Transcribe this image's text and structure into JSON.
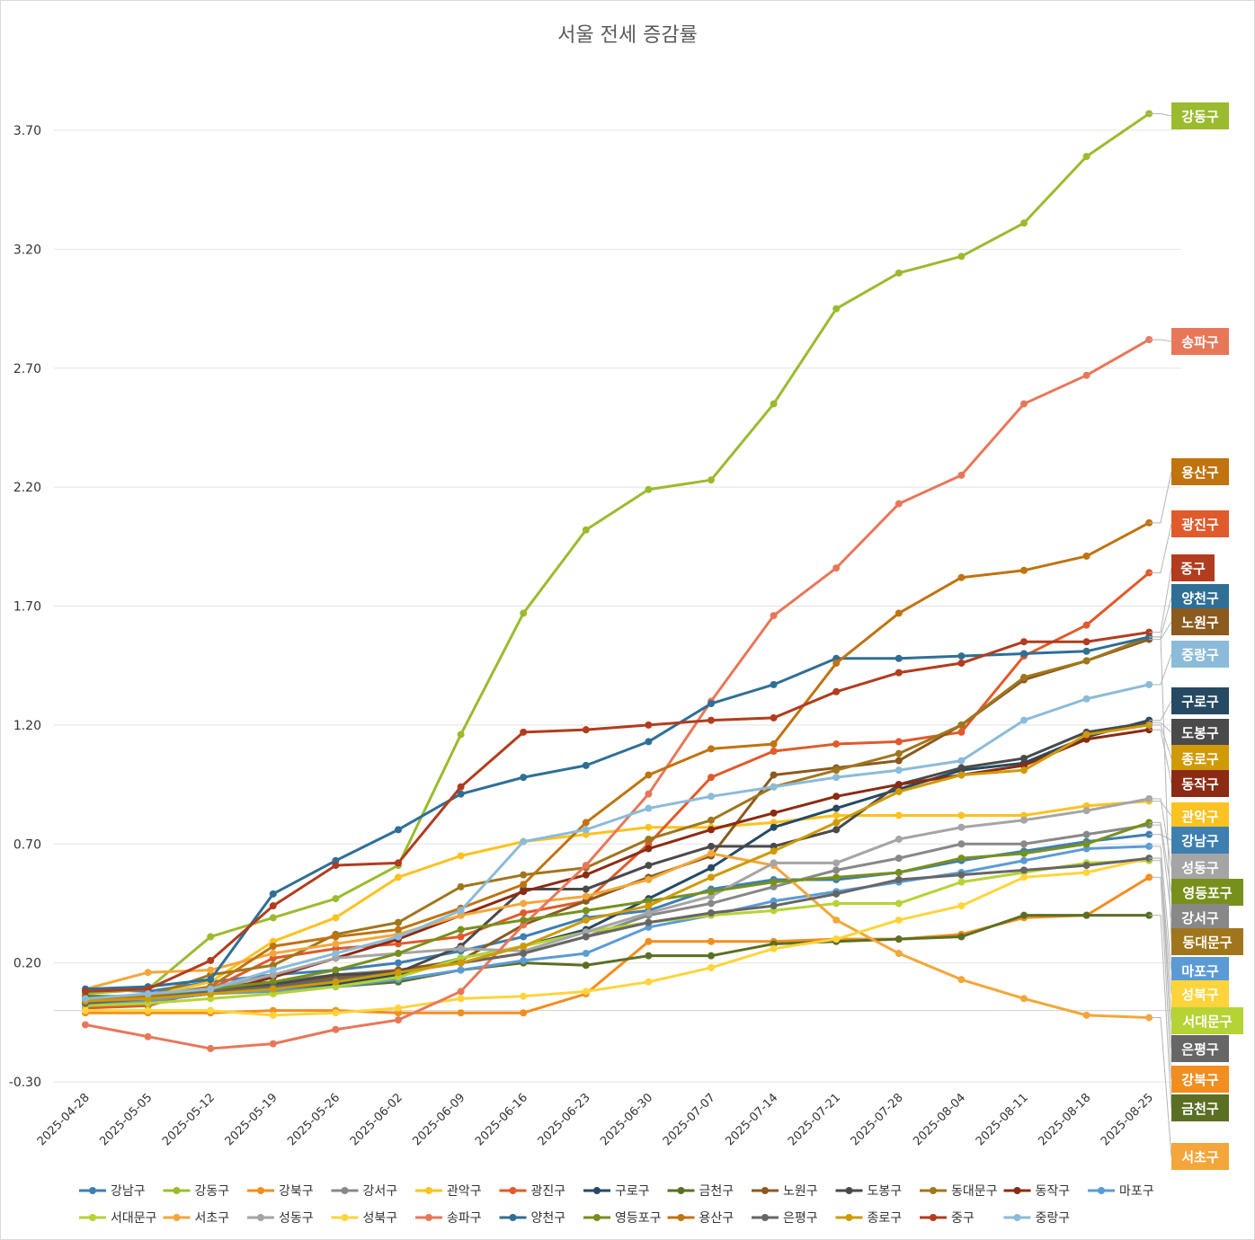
{
  "chart_data": {
    "type": "line",
    "title": "서울 전세 증감률",
    "xlabel": "",
    "ylabel": "",
    "ylim": [
      -0.3,
      3.95
    ],
    "yticks": [
      3.7,
      3.2,
      2.7,
      2.2,
      1.7,
      1.2,
      0.7,
      0.2,
      -0.3
    ],
    "y_tick_labels": [
      "3.70",
      "3.20",
      "2.70",
      "2.20",
      "1.70",
      "1.20",
      "0.70",
      "0.20",
      "-0.30"
    ],
    "grid": true,
    "legend_position": "bottom",
    "x": [
      "2025-04-28",
      "2025-05-05",
      "2025-05-12",
      "2025-05-19",
      "2025-05-26",
      "2025-06-02",
      "2025-06-09",
      "2025-06-16",
      "2025-06-23",
      "2025-06-30",
      "2025-07-07",
      "2025-07-14",
      "2025-07-21",
      "2025-07-28",
      "2025-08-04",
      "2025-08-11",
      "2025-08-18",
      "2025-08-25"
    ],
    "series": [
      {
        "name": "강남구",
        "color": "#3f7fb0",
        "values": [
          0.09,
          0.08,
          0.12,
          0.15,
          0.17,
          0.2,
          0.25,
          0.31,
          0.39,
          0.42,
          0.51,
          0.55,
          0.55,
          0.58,
          0.63,
          0.67,
          0.71,
          0.74
        ]
      },
      {
        "name": "강동구",
        "color": "#9bbb2e",
        "values": [
          0.07,
          0.09,
          0.31,
          0.39,
          0.47,
          0.61,
          1.16,
          1.67,
          2.02,
          2.19,
          2.23,
          2.55,
          2.95,
          3.1,
          3.17,
          3.31,
          3.59,
          3.77
        ]
      },
      {
        "name": "강북구",
        "color": "#f28e1f",
        "values": [
          -0.01,
          -0.01,
          -0.01,
          0.0,
          0.0,
          -0.01,
          -0.01,
          -0.01,
          0.07,
          0.29,
          0.29,
          0.29,
          0.3,
          0.3,
          0.32,
          0.39,
          0.4,
          0.56
        ]
      },
      {
        "name": "강서구",
        "color": "#888888",
        "values": [
          0.03,
          0.06,
          0.1,
          0.12,
          0.15,
          0.17,
          0.2,
          0.24,
          0.31,
          0.4,
          0.45,
          0.52,
          0.59,
          0.64,
          0.7,
          0.7,
          0.74,
          0.78
        ]
      },
      {
        "name": "관악구",
        "color": "#fbc220",
        "values": [
          0.04,
          0.06,
          0.12,
          0.29,
          0.39,
          0.56,
          0.65,
          0.71,
          0.74,
          0.77,
          0.77,
          0.79,
          0.82,
          0.82,
          0.82,
          0.82,
          0.86,
          0.88
        ]
      },
      {
        "name": "광진구",
        "color": "#e05a2b",
        "values": [
          0.01,
          0.02,
          0.09,
          0.22,
          0.26,
          0.28,
          0.31,
          0.41,
          0.46,
          0.7,
          0.98,
          1.09,
          1.12,
          1.13,
          1.17,
          1.49,
          1.62,
          1.84
        ]
      },
      {
        "name": "구로구",
        "color": "#264a63",
        "values": [
          0.05,
          0.06,
          0.08,
          0.09,
          0.11,
          0.15,
          0.22,
          0.27,
          0.34,
          0.47,
          0.6,
          0.77,
          0.85,
          0.93,
          1.01,
          1.04,
          1.15,
          1.22
        ]
      },
      {
        "name": "금천구",
        "color": "#5b6f24",
        "values": [
          0.06,
          0.06,
          0.07,
          0.09,
          0.1,
          0.12,
          0.17,
          0.2,
          0.19,
          0.23,
          0.23,
          0.28,
          0.29,
          0.3,
          0.31,
          0.4,
          0.4,
          0.4
        ]
      },
      {
        "name": "노원구",
        "color": "#8a5a1e",
        "values": [
          0.03,
          0.04,
          0.07,
          0.1,
          0.14,
          0.17,
          0.21,
          0.36,
          0.46,
          0.56,
          0.65,
          0.99,
          1.02,
          1.05,
          1.2,
          1.39,
          1.47,
          1.56
        ]
      },
      {
        "name": "도봉구",
        "color": "#4a4a4a",
        "values": [
          0.04,
          0.05,
          0.08,
          0.11,
          0.15,
          0.16,
          0.27,
          0.51,
          0.51,
          0.61,
          0.69,
          0.69,
          0.76,
          0.95,
          1.02,
          1.06,
          1.17,
          1.21
        ]
      },
      {
        "name": "동대문구",
        "color": "#a0761c",
        "values": [
          0.02,
          0.06,
          0.15,
          0.19,
          0.32,
          0.37,
          0.52,
          0.57,
          0.6,
          0.72,
          0.8,
          0.94,
          1.01,
          1.08,
          1.2,
          1.4,
          1.47,
          1.57
        ]
      },
      {
        "name": "동작구",
        "color": "#8b2b14",
        "values": [
          0.04,
          0.04,
          0.07,
          0.14,
          0.22,
          0.3,
          0.4,
          0.5,
          0.57,
          0.68,
          0.76,
          0.83,
          0.9,
          0.95,
          0.99,
          1.03,
          1.14,
          1.18
        ]
      },
      {
        "name": "마포구",
        "color": "#5b9bd5",
        "values": [
          0.02,
          0.04,
          0.07,
          0.08,
          0.1,
          0.13,
          0.17,
          0.21,
          0.24,
          0.35,
          0.4,
          0.46,
          0.5,
          0.54,
          0.58,
          0.63,
          0.68,
          0.69
        ]
      },
      {
        "name": "서대문구",
        "color": "#b5d334",
        "values": [
          0.02,
          0.03,
          0.05,
          0.07,
          0.1,
          0.14,
          0.22,
          0.27,
          0.33,
          0.37,
          0.4,
          0.42,
          0.45,
          0.45,
          0.54,
          0.58,
          0.62,
          0.63
        ]
      },
      {
        "name": "서초구",
        "color": "#f4a63a",
        "values": [
          0.09,
          0.16,
          0.17,
          0.24,
          0.28,
          0.32,
          0.4,
          0.45,
          0.48,
          0.55,
          0.66,
          0.61,
          0.38,
          0.24,
          0.13,
          0.05,
          -0.02,
          -0.03
        ]
      },
      {
        "name": "성동구",
        "color": "#a5a5a5",
        "values": [
          0.03,
          0.05,
          0.09,
          0.15,
          0.22,
          0.24,
          0.26,
          0.25,
          0.33,
          0.41,
          0.48,
          0.62,
          0.62,
          0.72,
          0.77,
          0.8,
          0.84,
          0.89
        ]
      },
      {
        "name": "성북구",
        "color": "#ffd43b",
        "values": [
          0.0,
          0.0,
          0.0,
          -0.02,
          -0.01,
          0.01,
          0.05,
          0.06,
          0.08,
          0.12,
          0.18,
          0.26,
          0.3,
          0.38,
          0.44,
          0.56,
          0.58,
          0.64
        ]
      },
      {
        "name": "송파구",
        "color": "#e8775a",
        "values": [
          -0.06,
          -0.11,
          -0.16,
          -0.14,
          -0.08,
          -0.04,
          0.08,
          0.36,
          0.61,
          0.91,
          1.3,
          1.66,
          1.86,
          2.13,
          2.25,
          2.55,
          2.67,
          2.82
        ]
      },
      {
        "name": "양천구",
        "color": "#2f6f96",
        "values": [
          0.09,
          0.1,
          0.13,
          0.49,
          0.63,
          0.76,
          0.91,
          0.98,
          1.03,
          1.13,
          1.29,
          1.37,
          1.48,
          1.48,
          1.49,
          1.5,
          1.51,
          1.57
        ]
      },
      {
        "name": "영등포구",
        "color": "#77901c",
        "values": [
          0.04,
          0.06,
          0.09,
          0.12,
          0.17,
          0.24,
          0.34,
          0.38,
          0.42,
          0.46,
          0.5,
          0.54,
          0.56,
          0.58,
          0.64,
          0.66,
          0.7,
          0.79
        ]
      },
      {
        "name": "용산구",
        "color": "#c0730f",
        "values": [
          0.05,
          0.06,
          0.1,
          0.27,
          0.31,
          0.34,
          0.43,
          0.53,
          0.79,
          0.99,
          1.1,
          1.12,
          1.46,
          1.67,
          1.82,
          1.85,
          1.91,
          2.05
        ]
      },
      {
        "name": "은평구",
        "color": "#666666",
        "values": [
          0.03,
          0.05,
          0.08,
          0.1,
          0.13,
          0.16,
          0.2,
          0.24,
          0.31,
          0.37,
          0.41,
          0.44,
          0.49,
          0.55,
          0.57,
          0.59,
          0.61,
          0.64
        ]
      },
      {
        "name": "종로구",
        "color": "#cf9a05",
        "values": [
          0.04,
          0.05,
          0.07,
          0.09,
          0.12,
          0.16,
          0.2,
          0.27,
          0.38,
          0.44,
          0.56,
          0.67,
          0.79,
          0.92,
          0.99,
          1.01,
          1.16,
          1.2
        ]
      },
      {
        "name": "중구",
        "color": "#b13c1e",
        "values": [
          0.08,
          0.09,
          0.21,
          0.44,
          0.61,
          0.62,
          0.94,
          1.17,
          1.18,
          1.2,
          1.22,
          1.23,
          1.34,
          1.42,
          1.46,
          1.55,
          1.55,
          1.59
        ]
      },
      {
        "name": "중랑구",
        "color": "#8bbbd9",
        "values": [
          0.05,
          0.07,
          0.09,
          0.17,
          0.24,
          0.31,
          0.42,
          0.71,
          0.76,
          0.85,
          0.9,
          0.94,
          0.98,
          1.01,
          1.05,
          1.22,
          1.31,
          1.37
        ]
      }
    ],
    "end_labels": [
      {
        "name": "강동구",
        "series": "강동구",
        "color": "#9bbb2e"
      },
      {
        "name": "송파구",
        "series": "송파구",
        "color": "#e8775a"
      },
      {
        "name": "용산구",
        "series": "용산구",
        "color": "#c0730f"
      },
      {
        "name": "광진구",
        "series": "광진구",
        "color": "#e05a2b"
      },
      {
        "name": "중구",
        "series": "중구",
        "color": "#b13c1e"
      },
      {
        "name": "양천구",
        "series": "양천구",
        "color": "#2f6f96"
      },
      {
        "name": "노원구",
        "series": "노원구",
        "color": "#8a5a1e"
      },
      {
        "name": "중랑구",
        "series": "중랑구",
        "color": "#8bbbd9"
      },
      {
        "name": "구로구",
        "series": "구로구",
        "color": "#264a63"
      },
      {
        "name": "도봉구",
        "series": "도봉구",
        "color": "#4a4a4a"
      },
      {
        "name": "종로구",
        "series": "종로구",
        "color": "#cf9a05"
      },
      {
        "name": "동작구",
        "series": "동작구",
        "color": "#8b2b14"
      },
      {
        "name": "관악구",
        "series": "관악구",
        "color": "#fbc220"
      },
      {
        "name": "강남구",
        "series": "강남구",
        "color": "#3f7fb0"
      },
      {
        "name": "성동구",
        "series": "성동구",
        "color": "#a5a5a5"
      },
      {
        "name": "영등포구",
        "series": "영등포구",
        "color": "#77901c"
      },
      {
        "name": "강서구",
        "series": "강서구",
        "color": "#888888"
      },
      {
        "name": "동대문구",
        "series": "동대문구",
        "color": "#a0761c"
      },
      {
        "name": "마포구",
        "series": "마포구",
        "color": "#5b9bd5"
      },
      {
        "name": "성북구",
        "series": "성북구",
        "color": "#ffd43b"
      },
      {
        "name": "서대문구",
        "series": "서대문구",
        "color": "#b5d334"
      },
      {
        "name": "은평구",
        "series": "은평구",
        "color": "#666666"
      },
      {
        "name": "강북구",
        "series": "강북구",
        "color": "#f28e1f"
      },
      {
        "name": "금천구",
        "series": "금천구",
        "color": "#5b6f24"
      },
      {
        "name": "서초구",
        "series": "서초구",
        "color": "#f4a63a"
      }
    ]
  }
}
